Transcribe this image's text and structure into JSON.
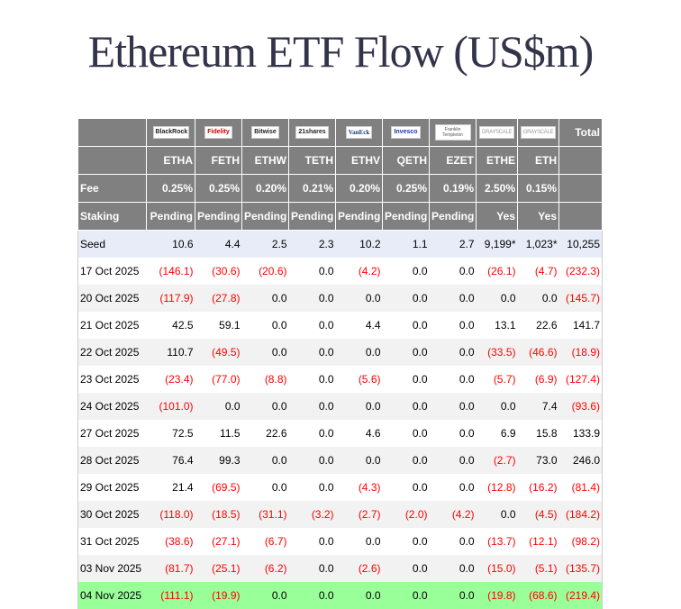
{
  "title": "Ethereum ETF Flow (US$m)",
  "logos": [
    "BlackRock",
    "Fidelity",
    "Bitwise",
    "21shares",
    "VanEck",
    "Invesco",
    "Franklin Templeton",
    "GRAYSCALE",
    "GRAYSCALE"
  ],
  "total_label": "Total",
  "tickers": [
    "ETHA",
    "FETH",
    "ETHW",
    "TETH",
    "ETHV",
    "QETH",
    "EZET",
    "ETHE",
    "ETH"
  ],
  "fee_label": "Fee",
  "fees": [
    "0.25%",
    "0.25%",
    "0.20%",
    "0.21%",
    "0.20%",
    "0.25%",
    "0.19%",
    "2.50%",
    "0.15%"
  ],
  "staking_label": "Staking",
  "staking": [
    "Pending",
    "Pending",
    "Pending",
    "Pending",
    "Pending",
    "Pending",
    "Pending",
    "Yes",
    "Yes"
  ],
  "seed": {
    "label": "Seed",
    "values": [
      "10.6",
      "4.4",
      "2.5",
      "2.3",
      "10.2",
      "1.1",
      "2.7",
      "9,199*",
      "1,023*",
      "10,255"
    ]
  },
  "rows": [
    {
      "date": "17 Oct 2025",
      "values": [
        "(146.1)",
        "(30.6)",
        "(20.6)",
        "0.0",
        "(4.2)",
        "0.0",
        "0.0",
        "(26.1)",
        "(4.7)",
        "(232.3)"
      ]
    },
    {
      "date": "20 Oct 2025",
      "values": [
        "(117.9)",
        "(27.8)",
        "0.0",
        "0.0",
        "0.0",
        "0.0",
        "0.0",
        "0.0",
        "0.0",
        "(145.7)"
      ]
    },
    {
      "date": "21 Oct 2025",
      "values": [
        "42.5",
        "59.1",
        "0.0",
        "0.0",
        "4.4",
        "0.0",
        "0.0",
        "13.1",
        "22.6",
        "141.7"
      ]
    },
    {
      "date": "22 Oct 2025",
      "values": [
        "110.7",
        "(49.5)",
        "0.0",
        "0.0",
        "0.0",
        "0.0",
        "0.0",
        "(33.5)",
        "(46.6)",
        "(18.9)"
      ]
    },
    {
      "date": "23 Oct 2025",
      "values": [
        "(23.4)",
        "(77.0)",
        "(8.8)",
        "0.0",
        "(5.6)",
        "0.0",
        "0.0",
        "(5.7)",
        "(6.9)",
        "(127.4)"
      ]
    },
    {
      "date": "24 Oct 2025",
      "values": [
        "(101.0)",
        "0.0",
        "0.0",
        "0.0",
        "0.0",
        "0.0",
        "0.0",
        "0.0",
        "7.4",
        "(93.6)"
      ]
    },
    {
      "date": "27 Oct 2025",
      "values": [
        "72.5",
        "11.5",
        "22.6",
        "0.0",
        "4.6",
        "0.0",
        "0.0",
        "6.9",
        "15.8",
        "133.9"
      ]
    },
    {
      "date": "28 Oct 2025",
      "values": [
        "76.4",
        "99.3",
        "0.0",
        "0.0",
        "0.0",
        "0.0",
        "0.0",
        "(2.7)",
        "73.0",
        "246.0"
      ]
    },
    {
      "date": "29 Oct 2025",
      "values": [
        "21.4",
        "(69.5)",
        "0.0",
        "0.0",
        "(4.3)",
        "0.0",
        "0.0",
        "(12.8)",
        "(16.2)",
        "(81.4)"
      ]
    },
    {
      "date": "30 Oct 2025",
      "values": [
        "(118.0)",
        "(18.5)",
        "(31.1)",
        "(3.2)",
        "(2.7)",
        "(2.0)",
        "(4.2)",
        "0.0",
        "(4.5)",
        "(184.2)"
      ]
    },
    {
      "date": "31 Oct 2025",
      "values": [
        "(38.6)",
        "(27.1)",
        "(6.7)",
        "0.0",
        "0.0",
        "0.0",
        "0.0",
        "(13.7)",
        "(12.1)",
        "(98.2)"
      ]
    },
    {
      "date": "03 Nov 2025",
      "values": [
        "(81.7)",
        "(25.1)",
        "(6.2)",
        "0.0",
        "(2.6)",
        "0.0",
        "0.0",
        "(15.0)",
        "(5.1)",
        "(135.7)"
      ]
    },
    {
      "date": "04 Nov 2025",
      "values": [
        "(111.1)",
        "(19.9)",
        "0.0",
        "0.0",
        "0.0",
        "0.0",
        "0.0",
        "(19.8)",
        "(68.6)",
        "(219.4)"
      ]
    }
  ],
  "colors": {
    "header_bg": "#808080",
    "negative": "#ff0000",
    "latest_row": "#99ff99",
    "seed_row": "#e8ecf8"
  }
}
